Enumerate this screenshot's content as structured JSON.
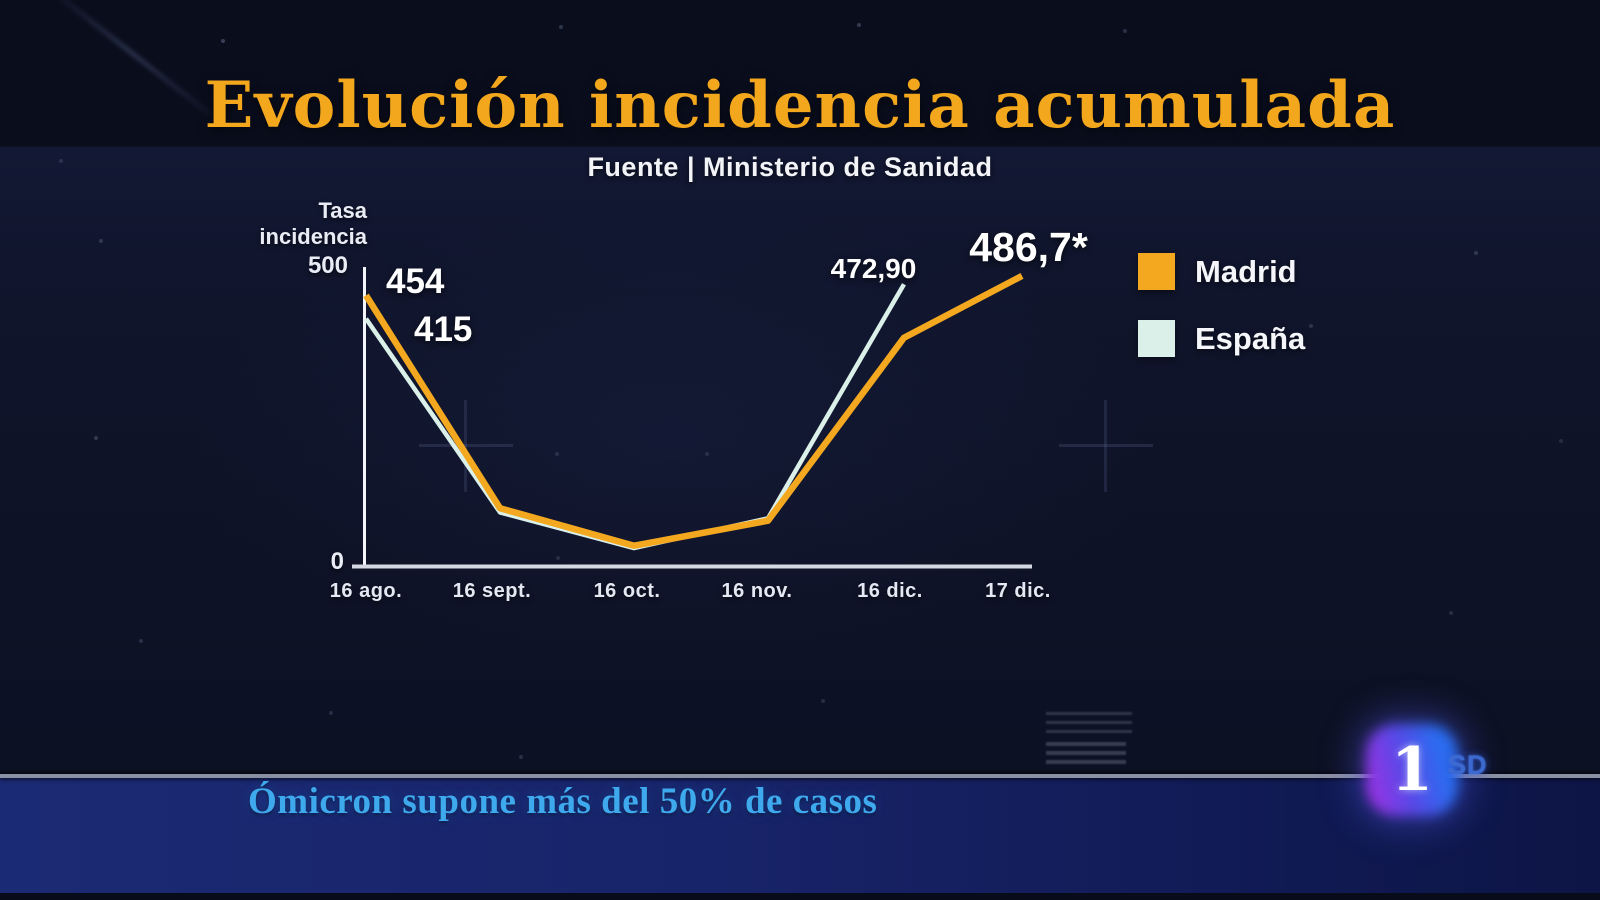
{
  "title": "Evolución incidencia acumulada",
  "source": "Fuente | Ministerio de Sanidad",
  "colors": {
    "title_gold": "#f3a71d",
    "madrid_line": "#f3a81f",
    "espana_line": "#daf0e9",
    "ticker_text": "#3fa9ed",
    "ticker_bar": "#182469",
    "background": "#0e1226"
  },
  "chart_data": {
    "type": "line",
    "title": "Evolución incidencia acumulada",
    "subtitle": "Fuente | Ministerio de Sanidad",
    "ylabel": "Tasa incidencia",
    "ylim": [
      0,
      500
    ],
    "yticks": [
      "500",
      "0"
    ],
    "grid": false,
    "legend_position": "right",
    "categories": [
      "16 ago.",
      "16 sept.",
      "16 oct.",
      "16 nov.",
      "16 dic.",
      "17 dic."
    ],
    "series": [
      {
        "name": "Madrid",
        "color": "#f3a81f",
        "values": [
          454,
          97,
          34,
          76,
          383,
          486.7
        ]
      },
      {
        "name": "España",
        "color": "#daf0e9",
        "values": [
          415,
          90,
          30,
          80,
          472.9,
          null
        ]
      }
    ],
    "point_labels": {
      "madrid_start": "454",
      "espana_start": "415",
      "espana_end": "472,90",
      "madrid_end": "486,7*"
    }
  },
  "ticker": {
    "text": "Ómicron supone más del 50% de casos"
  },
  "channel": {
    "logo": "1",
    "badge": "SD"
  }
}
